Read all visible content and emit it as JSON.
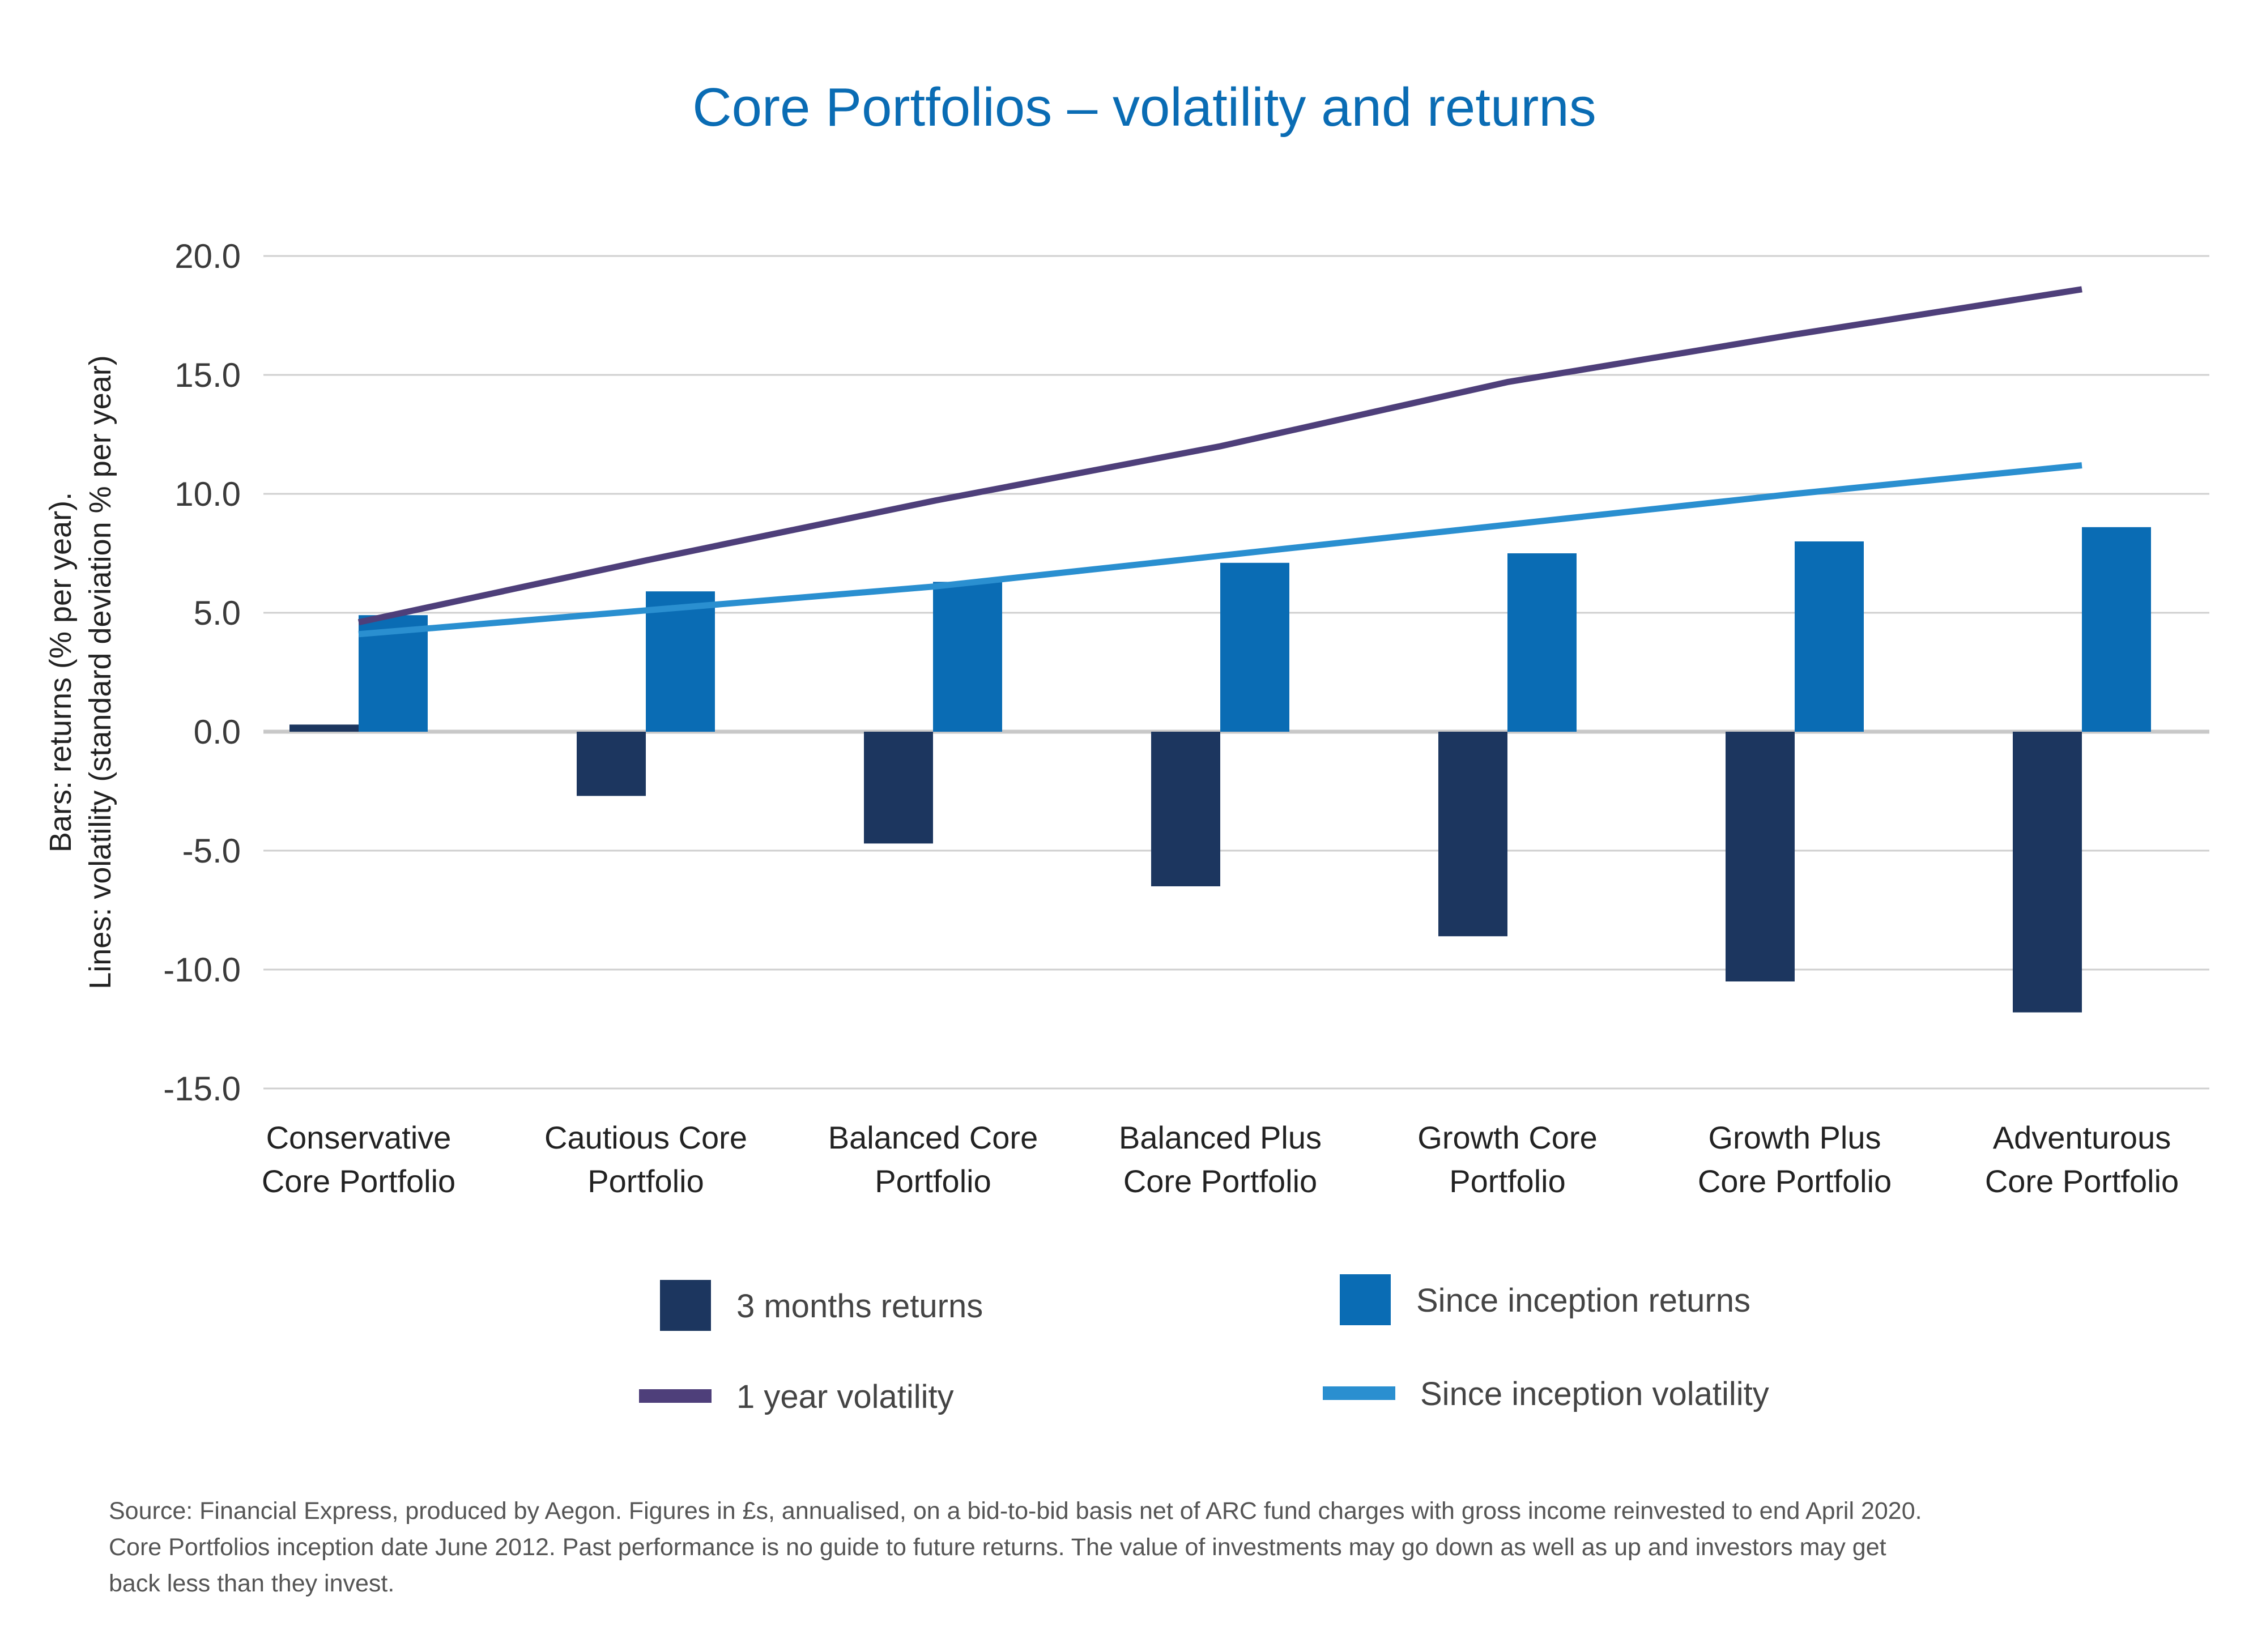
{
  "chart_data": {
    "type": "bar",
    "title": "Core Portfolios – volatility and returns",
    "ylabel_lines": [
      "Bars: returns (% per year).",
      "Lines: volatility (standard deviation % per year)"
    ],
    "ylim": [
      -15,
      20
    ],
    "yticks": [
      "20.0",
      "15.0",
      "10.0",
      "5.0",
      "0.0",
      "-5.0",
      "-10.0",
      "-15.0"
    ],
    "ytick_values": [
      20,
      15,
      10,
      5,
      0,
      -5,
      -10,
      -15
    ],
    "grid": true,
    "categories": [
      [
        "Conservative",
        "Core Portfolio"
      ],
      [
        "Cautious Core",
        "Portfolio"
      ],
      [
        "Balanced Core",
        "Portfolio"
      ],
      [
        "Balanced Plus",
        "Core Portfolio"
      ],
      [
        "Growth Core",
        "Portfolio"
      ],
      [
        "Growth Plus",
        "Core Portfolio"
      ],
      [
        "Adventurous",
        "Core Portfolio"
      ]
    ],
    "bar_series": [
      {
        "name": "3 months returns",
        "color": "#1c365f",
        "values": [
          0.3,
          -2.7,
          -4.7,
          -6.5,
          -8.6,
          -10.5,
          -11.8
        ]
      },
      {
        "name": "Since inception returns",
        "color": "#0a6cb4",
        "values": [
          4.9,
          5.9,
          6.3,
          7.1,
          7.5,
          8.0,
          8.6
        ]
      }
    ],
    "line_series": [
      {
        "name": "1 year volatility",
        "color": "#4e3f7a",
        "values": [
          4.6,
          7.2,
          9.7,
          12.0,
          14.7,
          16.7,
          18.6
        ]
      },
      {
        "name": "Since inception volatility",
        "color": "#2a8fd0",
        "values": [
          4.1,
          5.1,
          6.1,
          7.4,
          8.7,
          10.0,
          11.2
        ]
      }
    ],
    "legend_position": "bottom"
  },
  "source_lines": [
    "Source: Financial Express, produced by Aegon. Figures in £s, annualised, on a bid-to-bid basis net of ARC fund charges with gross income reinvested to end April 2020.",
    "Core Portfolios inception date June 2012. Past performance is no guide to future returns. The value of investments may go down as well as up and investors may get",
    "back less than they invest."
  ]
}
